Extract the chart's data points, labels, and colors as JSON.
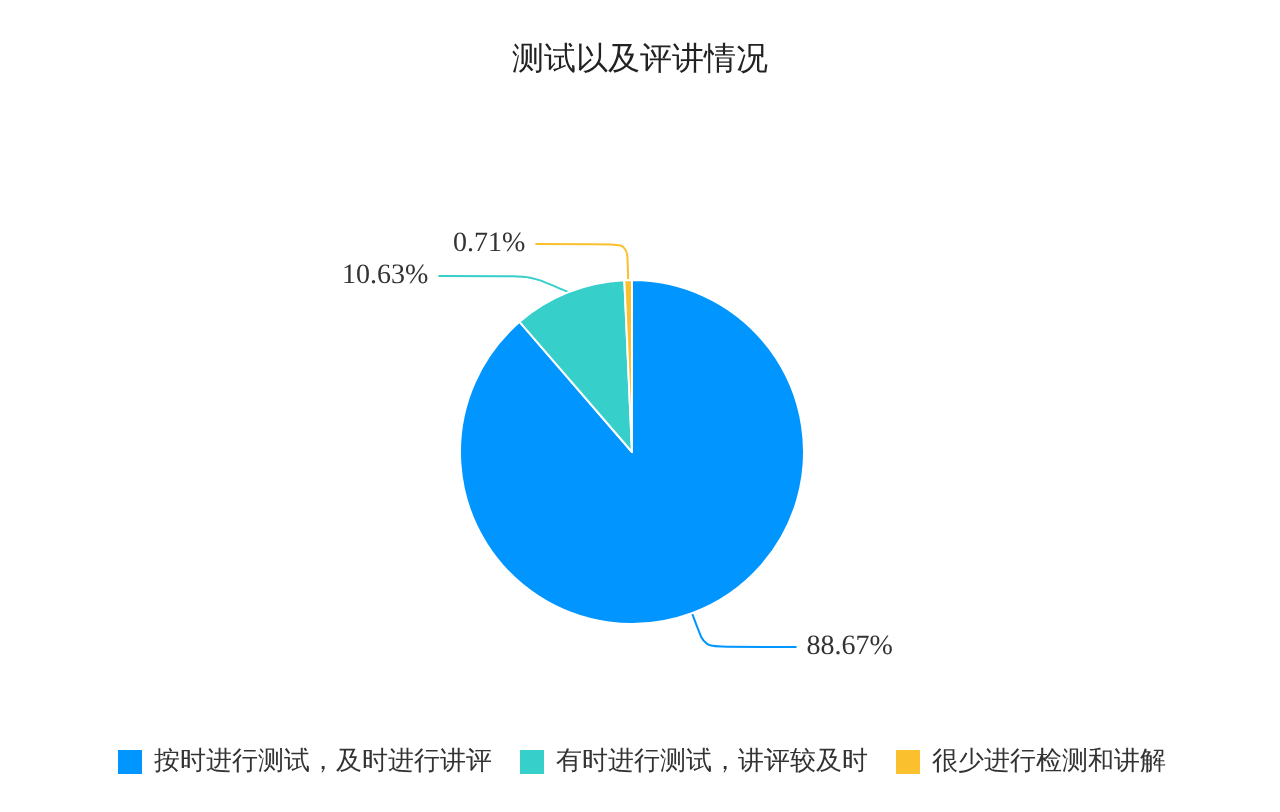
{
  "chart_data": {
    "type": "pie",
    "title": "测试以及评讲情况",
    "categories": [
      "按时进行测试，及时进行讲评",
      "有时进行测试，讲评较及时",
      "很少进行检测和讲解"
    ],
    "values": [
      88.67,
      10.63,
      0.71
    ],
    "colors": [
      "#0095ff",
      "#36cfc9",
      "#fbc02d"
    ],
    "value_labels": [
      "88.67%",
      "10.63%",
      "0.71%"
    ],
    "legend": "bottom"
  }
}
